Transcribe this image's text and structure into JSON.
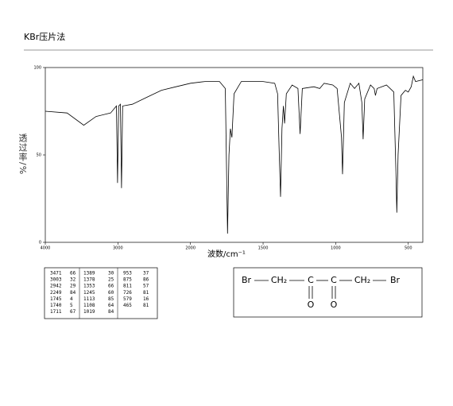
{
  "header": {
    "title": "KBr压片法"
  },
  "chart_data": {
    "type": "line",
    "xlabel": "波数/cm⁻¹",
    "ylabel": "透过率/%",
    "xlim": [
      4000,
      400
    ],
    "xscale_break": 2000,
    "xticks": [
      4000,
      3000,
      2000,
      1500,
      1000,
      500
    ],
    "ylim": [
      0,
      100
    ],
    "yticks": [
      0,
      50,
      100
    ],
    "x": [
      4000,
      3700,
      3470,
      3300,
      3100,
      3020,
      3005,
      2990,
      2965,
      2950,
      2935,
      2800,
      2600,
      2400,
      2200,
      2000,
      1900,
      1800,
      1760,
      1745,
      1735,
      1725,
      1715,
      1700,
      1650,
      1500,
      1420,
      1400,
      1390,
      1380,
      1370,
      1360,
      1352,
      1340,
      1300,
      1260,
      1245,
      1230,
      1150,
      1110,
      1080,
      1020,
      990,
      960,
      953,
      940,
      900,
      870,
      840,
      820,
      811,
      800,
      760,
      735,
      726,
      715,
      650,
      600,
      585,
      579,
      570,
      550,
      520,
      500,
      480,
      465,
      450,
      400
    ],
    "series": [
      {
        "color": "#000000",
        "values": [
          75,
          74,
          67,
          72,
          74,
          78,
          34,
          78,
          79,
          31,
          78,
          79,
          83,
          87,
          89,
          91,
          92,
          92,
          88,
          5,
          50,
          65,
          60,
          85,
          92,
          92,
          91,
          85,
          55,
          26,
          65,
          78,
          68,
          85,
          90,
          88,
          62,
          88,
          89,
          88,
          91,
          90,
          88,
          60,
          39,
          80,
          91,
          88,
          91,
          80,
          59,
          82,
          90,
          88,
          84,
          88,
          90,
          86,
          40,
          17,
          50,
          84,
          87,
          86,
          89,
          95,
          92,
          93
        ]
      }
    ]
  },
  "peak_table": {
    "columns": [
      [
        [
          3471,
          66
        ],
        [
          3003,
          32
        ],
        [
          2942,
          29
        ],
        [
          2249,
          84
        ],
        [
          1745,
          4
        ],
        [
          1740,
          5
        ],
        [
          1711,
          67
        ]
      ],
      [
        [
          1389,
          30
        ],
        [
          1378,
          25
        ],
        [
          1353,
          66
        ],
        [
          1245,
          60
        ],
        [
          1113,
          85
        ],
        [
          1108,
          64
        ],
        [
          1019,
          84
        ]
      ],
      [
        [
          953,
          37
        ],
        [
          875,
          86
        ],
        [
          811,
          57
        ],
        [
          726,
          81
        ],
        [
          579,
          16
        ],
        [
          465,
          81
        ]
      ]
    ]
  },
  "structure": {
    "groups": [
      "Br",
      "CH₂",
      "C",
      "C",
      "CH₂",
      "Br"
    ],
    "oxygens": [
      "O",
      "O"
    ]
  }
}
